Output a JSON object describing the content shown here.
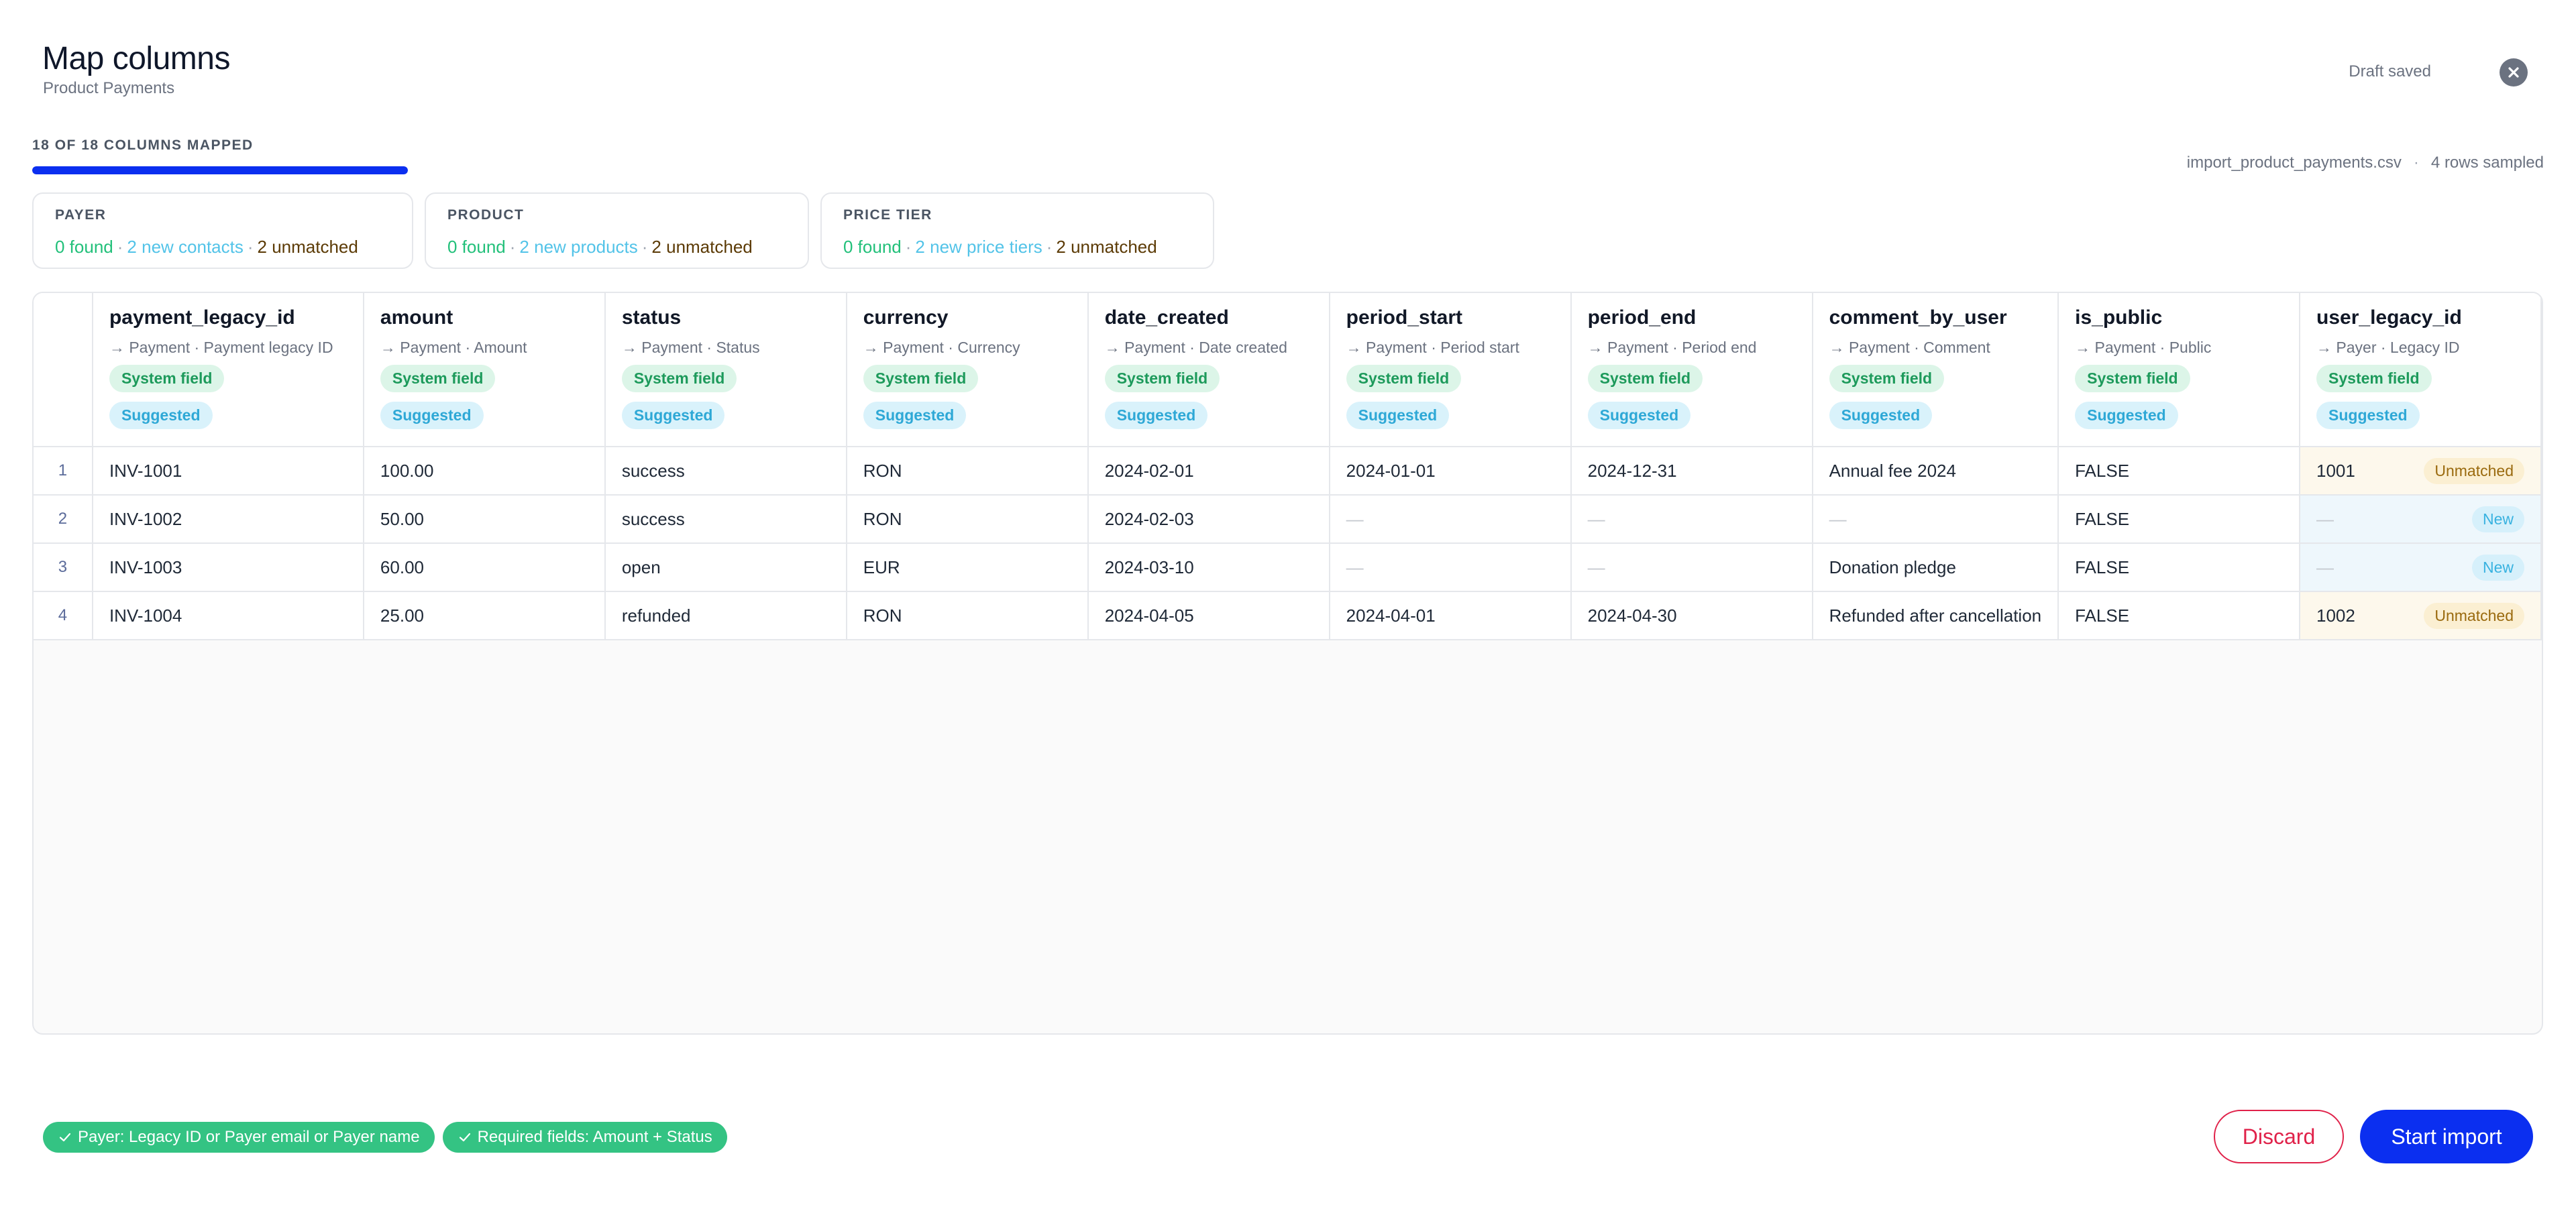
{
  "header": {
    "title": "Map columns",
    "subtitle": "Product Payments",
    "draft_status": "Draft saved",
    "close_icon": "close-icon"
  },
  "progress": {
    "label": "18 OF 18 COLUMNS MAPPED",
    "mapped": 18,
    "total": 18,
    "color": "#0b2ff0"
  },
  "file": {
    "name": "import_product_payments.csv",
    "separator": "·",
    "rows_sampled": "4 rows sampled"
  },
  "cards": [
    {
      "title": "PAYER",
      "found": "0 found",
      "new": "2 new contacts",
      "unmatched": "2 unmatched"
    },
    {
      "title": "PRODUCT",
      "found": "0 found",
      "new": "2 new products",
      "unmatched": "2 unmatched"
    },
    {
      "title": "PRICE TIER",
      "found": "0 found",
      "new": "2 new price tiers",
      "unmatched": "2 unmatched"
    }
  ],
  "table": {
    "columns": [
      {
        "name": "payment_legacy_id",
        "mapping": "→ Payment · Payment legacy ID",
        "badge1": "System field",
        "badge2": "Suggested"
      },
      {
        "name": "amount",
        "mapping": "→ Payment · Amount",
        "badge1": "System field",
        "badge2": "Suggested"
      },
      {
        "name": "status",
        "mapping": "→ Payment · Status",
        "badge1": "System field",
        "badge2": "Suggested"
      },
      {
        "name": "currency",
        "mapping": "→ Payment · Currency",
        "badge1": "System field",
        "badge2": "Suggested"
      },
      {
        "name": "date_created",
        "mapping": "→ Payment · Date created",
        "badge1": "System field",
        "badge2": "Suggested"
      },
      {
        "name": "period_start",
        "mapping": "→ Payment · Period start",
        "badge1": "System field",
        "badge2": "Suggested"
      },
      {
        "name": "period_end",
        "mapping": "→ Payment · Period end",
        "badge1": "System field",
        "badge2": "Suggested"
      },
      {
        "name": "comment_by_user",
        "mapping": "→ Payment · Comment",
        "badge1": "System field",
        "badge2": "Suggested"
      },
      {
        "name": "is_public",
        "mapping": "→ Payment · Public",
        "badge1": "System field",
        "badge2": "Suggested"
      },
      {
        "name": "user_legacy_id",
        "mapping": "→ Payer · Legacy ID",
        "badge1": "System field",
        "badge2": "Suggested"
      }
    ],
    "rows": [
      {
        "num": "1",
        "cells": [
          "INV-1001",
          "100.00",
          "success",
          "RON",
          "2024-02-01",
          "2024-01-01",
          "2024-12-31",
          "Annual fee 2024",
          "FALSE"
        ],
        "user": {
          "value": "1001",
          "status": "Unmatched",
          "kind": "unm"
        }
      },
      {
        "num": "2",
        "cells": [
          "INV-1002",
          "50.00",
          "success",
          "RON",
          "2024-02-03",
          "—",
          "—",
          "—",
          "FALSE"
        ],
        "user": {
          "value": "—",
          "status": "New",
          "kind": "new"
        }
      },
      {
        "num": "3",
        "cells": [
          "INV-1003",
          "60.00",
          "open",
          "EUR",
          "2024-03-10",
          "—",
          "—",
          "Donation pledge",
          "FALSE"
        ],
        "user": {
          "value": "—",
          "status": "New",
          "kind": "new"
        }
      },
      {
        "num": "4",
        "cells": [
          "INV-1004",
          "25.00",
          "refunded",
          "RON",
          "2024-04-05",
          "2024-04-01",
          "2024-04-30",
          "Refunded after cancellation",
          "FALSE"
        ],
        "user": {
          "value": "1002",
          "status": "Unmatched",
          "kind": "unm"
        }
      }
    ]
  },
  "footer": {
    "chips": [
      {
        "icon": "check-icon",
        "label": "Payer: Legacy ID or Payer email or Payer name"
      },
      {
        "icon": "check-icon",
        "label": "Required fields: Amount + Status"
      }
    ],
    "discard_label": "Discard",
    "start_label": "Start import"
  }
}
